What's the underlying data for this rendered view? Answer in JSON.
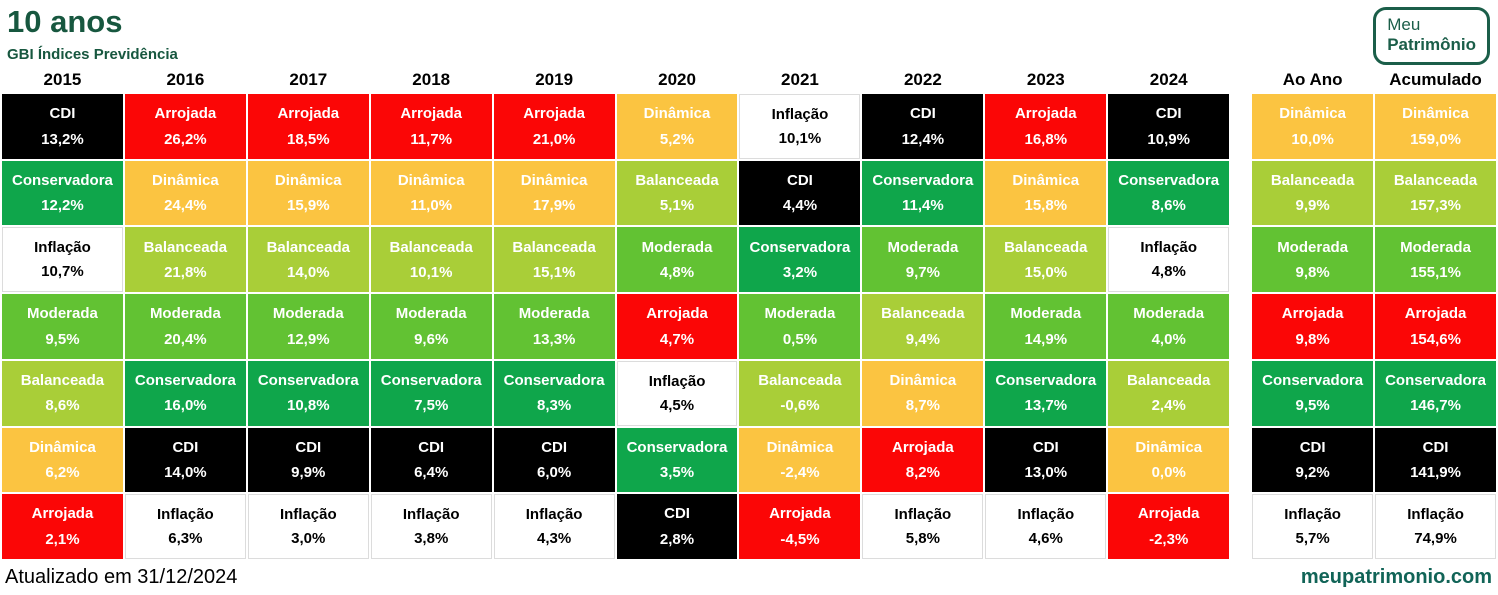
{
  "header": {
    "title": "10 anos",
    "subtitle": "GBI Índices Previdência"
  },
  "logo": {
    "line1": "Meu",
    "line2": "Patrimônio"
  },
  "footer": {
    "updated": "Atualizado em 31/12/2024",
    "site": "meupatrimonio.com"
  },
  "brand": {
    "title": "#17573F",
    "logo": "#1B5E49",
    "site": "#116457"
  },
  "categories": {
    "CDI": {
      "bg": "#000000",
      "fg": "#FFFFFF"
    },
    "Arrojada": {
      "bg": "#FB0606",
      "fg": "#FFFFFF"
    },
    "Dinâmica": {
      "bg": "#FBC441",
      "fg": "#FFFFFF"
    },
    "Inflação": {
      "bg": "#FFFFFF",
      "fg": "#000000",
      "border": "#DCDCDC"
    },
    "Conservadora": {
      "bg": "#0FA64B",
      "fg": "#FFFFFF"
    },
    "Balanceada": {
      "bg": "#A9CE38",
      "fg": "#FFFFFF"
    },
    "Moderada": {
      "bg": "#62C233",
      "fg": "#FFFFFF"
    }
  },
  "chart_data": {
    "type": "table",
    "title": "10 anos",
    "subtitle": "GBI Índices Previdência",
    "note": "Cells ranked best-to-worst per year; value format pt-BR",
    "columns": [
      {
        "label": "2015",
        "cells": [
          {
            "name": "CDI",
            "value": "13,2%"
          },
          {
            "name": "Conservadora",
            "value": "12,2%"
          },
          {
            "name": "Inflação",
            "value": "10,7%"
          },
          {
            "name": "Moderada",
            "value": "9,5%"
          },
          {
            "name": "Balanceada",
            "value": "8,6%"
          },
          {
            "name": "Dinâmica",
            "value": "6,2%"
          },
          {
            "name": "Arrojada",
            "value": "2,1%"
          }
        ]
      },
      {
        "label": "2016",
        "cells": [
          {
            "name": "Arrojada",
            "value": "26,2%"
          },
          {
            "name": "Dinâmica",
            "value": "24,4%"
          },
          {
            "name": "Balanceada",
            "value": "21,8%"
          },
          {
            "name": "Moderada",
            "value": "20,4%"
          },
          {
            "name": "Conservadora",
            "value": "16,0%"
          },
          {
            "name": "CDI",
            "value": "14,0%"
          },
          {
            "name": "Inflação",
            "value": "6,3%"
          }
        ]
      },
      {
        "label": "2017",
        "cells": [
          {
            "name": "Arrojada",
            "value": "18,5%"
          },
          {
            "name": "Dinâmica",
            "value": "15,9%"
          },
          {
            "name": "Balanceada",
            "value": "14,0%"
          },
          {
            "name": "Moderada",
            "value": "12,9%"
          },
          {
            "name": "Conservadora",
            "value": "10,8%"
          },
          {
            "name": "CDI",
            "value": "9,9%"
          },
          {
            "name": "Inflação",
            "value": "3,0%"
          }
        ]
      },
      {
        "label": "2018",
        "cells": [
          {
            "name": "Arrojada",
            "value": "11,7%"
          },
          {
            "name": "Dinâmica",
            "value": "11,0%"
          },
          {
            "name": "Balanceada",
            "value": "10,1%"
          },
          {
            "name": "Moderada",
            "value": "9,6%"
          },
          {
            "name": "Conservadora",
            "value": "7,5%"
          },
          {
            "name": "CDI",
            "value": "6,4%"
          },
          {
            "name": "Inflação",
            "value": "3,8%"
          }
        ]
      },
      {
        "label": "2019",
        "cells": [
          {
            "name": "Arrojada",
            "value": "21,0%"
          },
          {
            "name": "Dinâmica",
            "value": "17,9%"
          },
          {
            "name": "Balanceada",
            "value": "15,1%"
          },
          {
            "name": "Moderada",
            "value": "13,3%"
          },
          {
            "name": "Conservadora",
            "value": "8,3%"
          },
          {
            "name": "CDI",
            "value": "6,0%"
          },
          {
            "name": "Inflação",
            "value": "4,3%"
          }
        ]
      },
      {
        "label": "2020",
        "cells": [
          {
            "name": "Dinâmica",
            "value": "5,2%"
          },
          {
            "name": "Balanceada",
            "value": "5,1%"
          },
          {
            "name": "Moderada",
            "value": "4,8%"
          },
          {
            "name": "Arrojada",
            "value": "4,7%"
          },
          {
            "name": "Inflação",
            "value": "4,5%"
          },
          {
            "name": "Conservadora",
            "value": "3,5%"
          },
          {
            "name": "CDI",
            "value": "2,8%"
          }
        ]
      },
      {
        "label": "2021",
        "cells": [
          {
            "name": "Inflação",
            "value": "10,1%"
          },
          {
            "name": "CDI",
            "value": "4,4%"
          },
          {
            "name": "Conservadora",
            "value": "3,2%"
          },
          {
            "name": "Moderada",
            "value": "0,5%"
          },
          {
            "name": "Balanceada",
            "value": "-0,6%"
          },
          {
            "name": "Dinâmica",
            "value": "-2,4%"
          },
          {
            "name": "Arrojada",
            "value": "-4,5%"
          }
        ]
      },
      {
        "label": "2022",
        "cells": [
          {
            "name": "CDI",
            "value": "12,4%"
          },
          {
            "name": "Conservadora",
            "value": "11,4%"
          },
          {
            "name": "Moderada",
            "value": "9,7%"
          },
          {
            "name": "Balanceada",
            "value": "9,4%"
          },
          {
            "name": "Dinâmica",
            "value": "8,7%"
          },
          {
            "name": "Arrojada",
            "value": "8,2%"
          },
          {
            "name": "Inflação",
            "value": "5,8%"
          }
        ]
      },
      {
        "label": "2023",
        "cells": [
          {
            "name": "Arrojada",
            "value": "16,8%"
          },
          {
            "name": "Dinâmica",
            "value": "15,8%"
          },
          {
            "name": "Balanceada",
            "value": "15,0%"
          },
          {
            "name": "Moderada",
            "value": "14,9%"
          },
          {
            "name": "Conservadora",
            "value": "13,7%"
          },
          {
            "name": "CDI",
            "value": "13,0%"
          },
          {
            "name": "Inflação",
            "value": "4,6%"
          }
        ]
      },
      {
        "label": "2024",
        "cells": [
          {
            "name": "CDI",
            "value": "10,9%"
          },
          {
            "name": "Conservadora",
            "value": "8,6%"
          },
          {
            "name": "Inflação",
            "value": "4,8%"
          },
          {
            "name": "Moderada",
            "value": "4,0%"
          },
          {
            "name": "Balanceada",
            "value": "2,4%"
          },
          {
            "name": "Dinâmica",
            "value": "0,0%"
          },
          {
            "name": "Arrojada",
            "value": "-2,3%"
          }
        ]
      },
      {
        "label": "Ao Ano",
        "summary": true,
        "cells": [
          {
            "name": "Dinâmica",
            "value": "10,0%"
          },
          {
            "name": "Balanceada",
            "value": "9,9%"
          },
          {
            "name": "Moderada",
            "value": "9,8%"
          },
          {
            "name": "Arrojada",
            "value": "9,8%"
          },
          {
            "name": "Conservadora",
            "value": "9,5%"
          },
          {
            "name": "CDI",
            "value": "9,2%"
          },
          {
            "name": "Inflação",
            "value": "5,7%"
          }
        ]
      },
      {
        "label": "Acumulado",
        "summary": true,
        "cells": [
          {
            "name": "Dinâmica",
            "value": "159,0%"
          },
          {
            "name": "Balanceada",
            "value": "157,3%"
          },
          {
            "name": "Moderada",
            "value": "155,1%"
          },
          {
            "name": "Arrojada",
            "value": "154,6%"
          },
          {
            "name": "Conservadora",
            "value": "146,7%"
          },
          {
            "name": "CDI",
            "value": "141,9%"
          },
          {
            "name": "Inflação",
            "value": "74,9%"
          }
        ]
      }
    ]
  }
}
